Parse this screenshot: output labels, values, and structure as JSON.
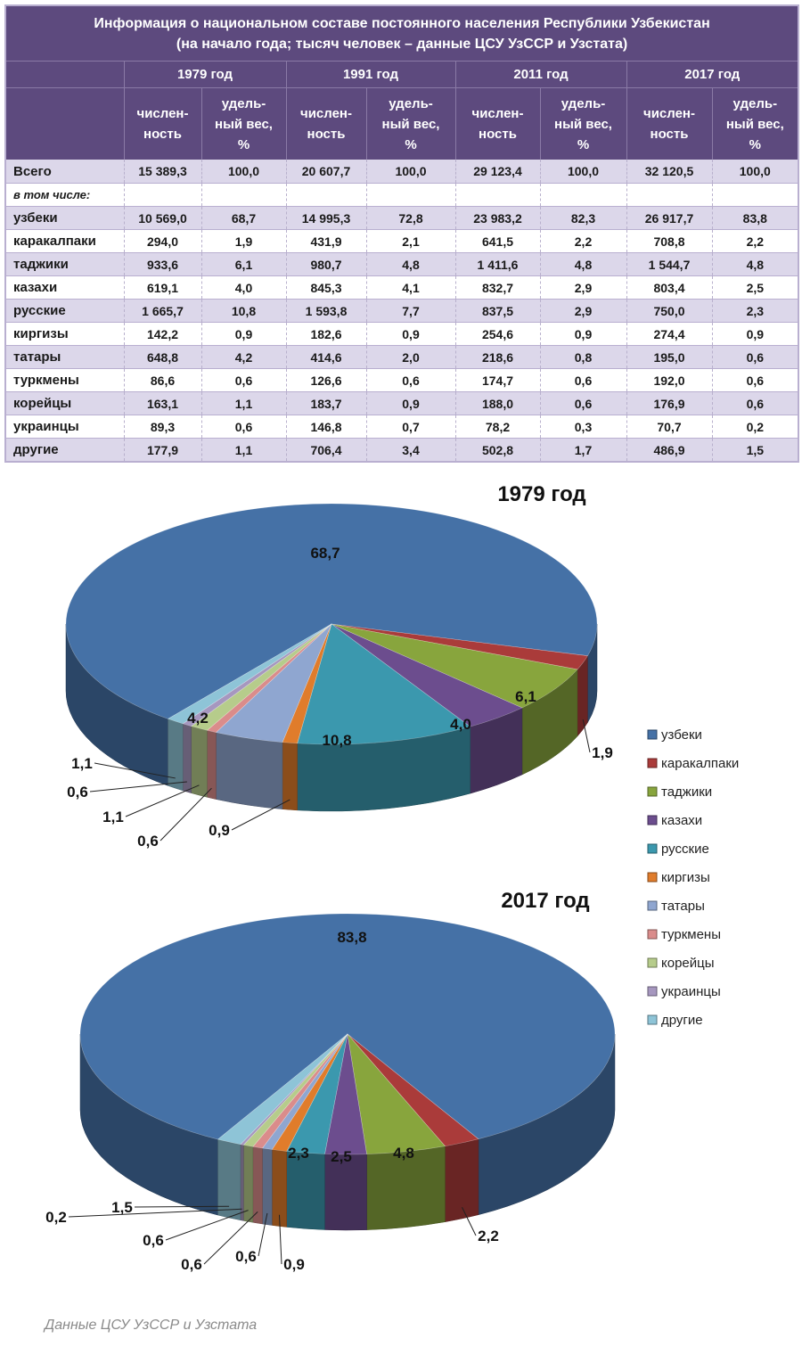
{
  "table": {
    "title_line1": "Информация о национальном составе постоянного населения Республики Узбекистан",
    "title_line2": "(на начало года; тысяч человек – данные ЦСУ УзССР и Узстата)",
    "years": [
      "1979 год",
      "1991 год",
      "2011 год",
      "2017 год"
    ],
    "sub_count": [
      "числен-",
      "ность"
    ],
    "sub_share": [
      "удель-",
      "ный вес,",
      "%"
    ],
    "total": {
      "label": "Всего",
      "values": [
        "15 389,3",
        "100,0",
        "20 607,7",
        "100,0",
        "29 123,4",
        "100,0",
        "32 120,5",
        "100,0"
      ]
    },
    "including_label": "в том числе:",
    "rows": [
      {
        "label": "узбеки",
        "values": [
          "10 569,0",
          "68,7",
          "14 995,3",
          "72,8",
          "23 983,2",
          "82,3",
          "26 917,7",
          "83,8"
        ]
      },
      {
        "label": "каракалпаки",
        "values": [
          "294,0",
          "1,9",
          "431,9",
          "2,1",
          "641,5",
          "2,2",
          "708,8",
          "2,2"
        ]
      },
      {
        "label": "таджики",
        "values": [
          "933,6",
          "6,1",
          "980,7",
          "4,8",
          "1 411,6",
          "4,8",
          "1 544,7",
          "4,8"
        ]
      },
      {
        "label": "казахи",
        "values": [
          "619,1",
          "4,0",
          "845,3",
          "4,1",
          "832,7",
          "2,9",
          "803,4",
          "2,5"
        ]
      },
      {
        "label": "русские",
        "values": [
          "1 665,7",
          "10,8",
          "1 593,8",
          "7,7",
          "837,5",
          "2,9",
          "750,0",
          "2,3"
        ]
      },
      {
        "label": "киргизы",
        "values": [
          "142,2",
          "0,9",
          "182,6",
          "0,9",
          "254,6",
          "0,9",
          "274,4",
          "0,9"
        ]
      },
      {
        "label": "татары",
        "values": [
          "648,8",
          "4,2",
          "414,6",
          "2,0",
          "218,6",
          "0,8",
          "195,0",
          "0,6"
        ]
      },
      {
        "label": "туркмены",
        "values": [
          "86,6",
          "0,6",
          "126,6",
          "0,6",
          "174,7",
          "0,6",
          "192,0",
          "0,6"
        ]
      },
      {
        "label": "корейцы",
        "values": [
          "163,1",
          "1,1",
          "183,7",
          "0,9",
          "188,0",
          "0,6",
          "176,9",
          "0,6"
        ]
      },
      {
        "label": "украинцы",
        "values": [
          "89,3",
          "0,6",
          "146,8",
          "0,7",
          "78,2",
          "0,3",
          "70,7",
          "0,2"
        ]
      },
      {
        "label": "другие",
        "values": [
          "177,9",
          "1,1",
          "706,4",
          "3,4",
          "502,8",
          "1,7",
          "486,9",
          "1,5"
        ]
      }
    ]
  },
  "chart_data": [
    {
      "type": "pie",
      "title": "1979 год",
      "categories": [
        "узбеки",
        "каракалпаки",
        "таджики",
        "казахи",
        "русские",
        "киргизы",
        "татары",
        "туркмены",
        "корейцы",
        "украинцы",
        "другие"
      ],
      "values": [
        68.7,
        1.9,
        6.1,
        4.0,
        10.8,
        0.9,
        4.2,
        0.6,
        1.1,
        0.6,
        1.1
      ],
      "labels": [
        "68,7",
        "1,9",
        "6,1",
        "4,0",
        "10,8",
        "0,9",
        "4,2",
        "0,6",
        "1,1",
        "0,6",
        "1,1"
      ],
      "legend": "right"
    },
    {
      "type": "pie",
      "title": "2017 год",
      "categories": [
        "узбеки",
        "каракалпаки",
        "таджики",
        "казахи",
        "русские",
        "киргизы",
        "татары",
        "туркмены",
        "корейцы",
        "украинцы",
        "другие"
      ],
      "values": [
        83.8,
        2.2,
        4.8,
        2.5,
        2.3,
        0.9,
        0.6,
        0.6,
        0.6,
        0.2,
        1.5
      ],
      "labels": [
        "83,8",
        "2,2",
        "4,8",
        "2,5",
        "2,3",
        "0,9",
        "0,6",
        "0,6",
        "0,6",
        "0,2",
        "1,5"
      ],
      "legend": "right"
    }
  ],
  "colors": [
    "#4571a6",
    "#aa3b3a",
    "#88a53d",
    "#6c4d8e",
    "#3b98ae",
    "#e07c2b",
    "#8fa6d0",
    "#da8c8b",
    "#b6cc8b",
    "#a697bf",
    "#8ec4d7"
  ],
  "footer": "Данные ЦСУ УзССР и Узстата"
}
